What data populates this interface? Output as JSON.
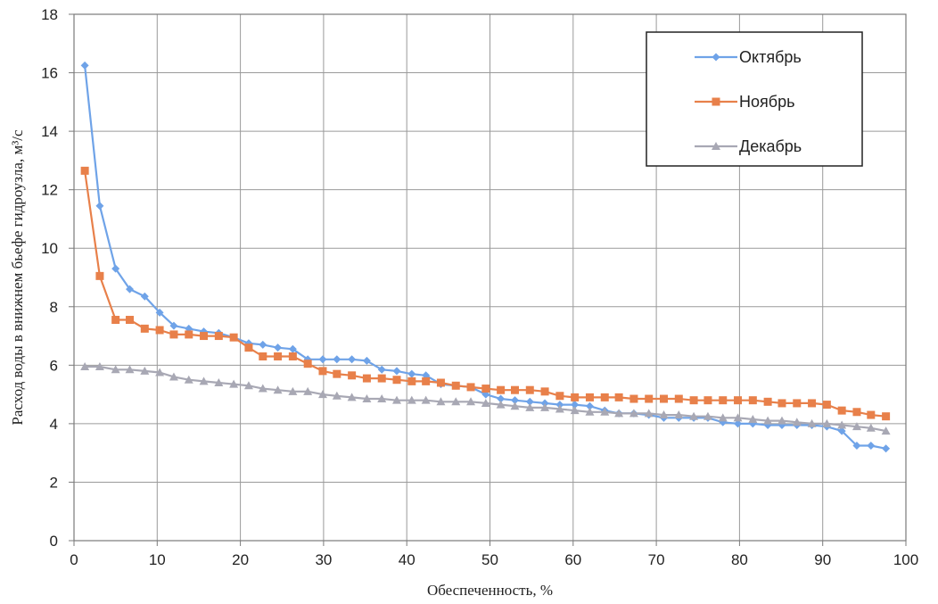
{
  "chart_data": {
    "type": "line",
    "title": "",
    "xlabel": "Обеспеченность, %",
    "ylabel": "Расход воды в внижнем бьефе гидроузла, м³/с",
    "xlim": [
      0,
      100
    ],
    "ylim": [
      0,
      18
    ],
    "xticks": [
      0,
      10,
      20,
      30,
      40,
      50,
      60,
      70,
      80,
      90,
      100
    ],
    "yticks": [
      0,
      2,
      4,
      6,
      8,
      10,
      12,
      14,
      16,
      18
    ],
    "grid": true,
    "legend_position": "top-right",
    "series": [
      {
        "name": "Октябрь",
        "color": "#6fa3e8",
        "marker": "diamond",
        "x": [
          1.3,
          3.1,
          5,
          6.7,
          8.5,
          10.3,
          12,
          13.8,
          15.6,
          17.4,
          19.2,
          21,
          22.7,
          24.5,
          26.3,
          28.1,
          29.9,
          31.6,
          33.4,
          35.2,
          37,
          38.8,
          40.6,
          42.3,
          44.1,
          45.9,
          47.7,
          49.5,
          51.3,
          53,
          54.8,
          56.6,
          58.4,
          60.2,
          62,
          63.8,
          65.5,
          67.3,
          69.1,
          70.9,
          72.7,
          74.5,
          76.2,
          78,
          79.8,
          81.6,
          83.4,
          85.1,
          86.9,
          88.7,
          90.5,
          92.3,
          94.1,
          95.8,
          97.6
        ],
        "y": [
          16.25,
          11.45,
          9.3,
          8.6,
          8.35,
          7.8,
          7.35,
          7.25,
          7.15,
          7.1,
          6.95,
          6.75,
          6.7,
          6.6,
          6.55,
          6.2,
          6.2,
          6.2,
          6.2,
          6.15,
          5.85,
          5.8,
          5.7,
          5.65,
          5.35,
          5.3,
          5.25,
          5.0,
          4.85,
          4.8,
          4.75,
          4.7,
          4.65,
          4.65,
          4.6,
          4.45,
          4.35,
          4.35,
          4.3,
          4.2,
          4.2,
          4.2,
          4.2,
          4.05,
          4.0,
          4.0,
          3.95,
          3.95,
          3.95,
          3.95,
          3.9,
          3.75,
          3.25,
          3.25,
          3.15
        ]
      },
      {
        "name": "Ноябрь",
        "color": "#e8804a",
        "marker": "square",
        "x": [
          1.3,
          3.1,
          5,
          6.7,
          8.5,
          10.3,
          12,
          13.8,
          15.6,
          17.4,
          19.2,
          21,
          22.7,
          24.5,
          26.3,
          28.1,
          29.9,
          31.6,
          33.4,
          35.2,
          37,
          38.8,
          40.6,
          42.3,
          44.1,
          45.9,
          47.7,
          49.5,
          51.3,
          53,
          54.8,
          56.6,
          58.4,
          60.2,
          62,
          63.8,
          65.5,
          67.3,
          69.1,
          70.9,
          72.7,
          74.5,
          76.2,
          78,
          79.8,
          81.6,
          83.4,
          85.1,
          86.9,
          88.7,
          90.5,
          92.3,
          94.1,
          95.8,
          97.6
        ],
        "y": [
          12.65,
          9.05,
          7.55,
          7.55,
          7.25,
          7.2,
          7.05,
          7.05,
          7.0,
          7.0,
          6.95,
          6.6,
          6.3,
          6.3,
          6.3,
          6.05,
          5.8,
          5.7,
          5.65,
          5.55,
          5.55,
          5.5,
          5.45,
          5.45,
          5.4,
          5.3,
          5.25,
          5.2,
          5.15,
          5.15,
          5.15,
          5.1,
          4.95,
          4.9,
          4.9,
          4.9,
          4.9,
          4.85,
          4.85,
          4.85,
          4.85,
          4.8,
          4.8,
          4.8,
          4.8,
          4.8,
          4.75,
          4.7,
          4.7,
          4.7,
          4.65,
          4.45,
          4.4,
          4.3,
          4.25
        ]
      },
      {
        "name": "Декабрь",
        "color": "#a8a8b4",
        "marker": "triangle",
        "x": [
          1.3,
          3.1,
          5,
          6.7,
          8.5,
          10.3,
          12,
          13.8,
          15.6,
          17.4,
          19.2,
          21,
          22.7,
          24.5,
          26.3,
          28.1,
          29.9,
          31.6,
          33.4,
          35.2,
          37,
          38.8,
          40.6,
          42.3,
          44.1,
          45.9,
          47.7,
          49.5,
          51.3,
          53,
          54.8,
          56.6,
          58.4,
          60.2,
          62,
          63.8,
          65.5,
          67.3,
          69.1,
          70.9,
          72.7,
          74.5,
          76.2,
          78,
          79.8,
          81.6,
          83.4,
          85.1,
          86.9,
          88.7,
          90.5,
          92.3,
          94.1,
          95.8,
          97.6
        ],
        "y": [
          5.95,
          5.95,
          5.85,
          5.85,
          5.8,
          5.75,
          5.6,
          5.5,
          5.45,
          5.4,
          5.35,
          5.3,
          5.2,
          5.15,
          5.1,
          5.1,
          5.0,
          4.95,
          4.9,
          4.85,
          4.85,
          4.8,
          4.8,
          4.8,
          4.75,
          4.75,
          4.75,
          4.7,
          4.65,
          4.6,
          4.55,
          4.55,
          4.5,
          4.45,
          4.4,
          4.4,
          4.35,
          4.35,
          4.35,
          4.3,
          4.3,
          4.25,
          4.25,
          4.2,
          4.2,
          4.15,
          4.1,
          4.1,
          4.05,
          4.0,
          4.0,
          3.95,
          3.9,
          3.85,
          3.75
        ]
      }
    ]
  }
}
